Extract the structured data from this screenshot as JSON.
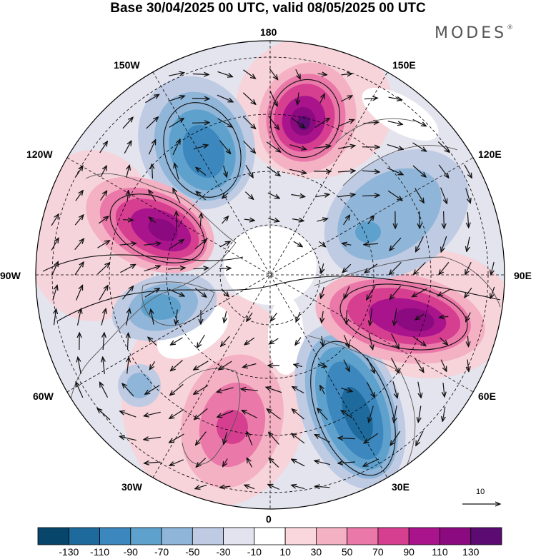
{
  "title": "Base 30/04/2025 00 UTC, valid 08/05/2025 00 UTC",
  "brand": "MODES",
  "brand_mark": "®",
  "longitude_labels": {
    "n180": "180",
    "e150": "150E",
    "e120": "120E",
    "e90": "90E",
    "e60": "60E",
    "e30": "30E",
    "z0": "0",
    "w30": "30W",
    "w60": "60W",
    "w90": "90W",
    "w120": "120W",
    "w150": "150W"
  },
  "reference_vector_label": "10",
  "colorbar": {
    "tick_labels": [
      "-130",
      "-110",
      "-90",
      "-70",
      "-50",
      "-30",
      "-10",
      "10",
      "30",
      "50",
      "70",
      "90",
      "110",
      "130"
    ],
    "colors": [
      "#08456b",
      "#1e6a9c",
      "#3c87bd",
      "#5ea1cc",
      "#8fb5d8",
      "#bfcbe3",
      "#e3e3ef",
      "#ffffff",
      "#f9d7dc",
      "#f4b1c3",
      "#ea78a8",
      "#d63f90",
      "#a9148c",
      "#8c0a80",
      "#5b0b72"
    ]
  },
  "map": {
    "projection": "north polar stereographic",
    "colors": {
      "land_outline": "#555555",
      "wind_arrows": "#111111",
      "gridlines": "#000000"
    },
    "anomaly_centers": [
      {
        "name": "positive-anomaly-east-siberia",
        "sign": "positive",
        "peak": 120
      },
      {
        "name": "positive-anomaly-north-america",
        "sign": "positive",
        "peak": 110
      },
      {
        "name": "positive-anomaly-central-asia",
        "sign": "positive",
        "peak": 110
      },
      {
        "name": "positive-anomaly-north-atlantic",
        "sign": "positive",
        "peak": 70
      },
      {
        "name": "negative-anomaly-north-pacific",
        "sign": "negative",
        "peak": -100
      },
      {
        "name": "negative-anomaly-europe",
        "sign": "negative",
        "peak": -100
      },
      {
        "name": "negative-anomaly-siberia",
        "sign": "negative",
        "peak": -60
      },
      {
        "name": "negative-anomaly-hudson-bay",
        "sign": "negative",
        "peak": -70
      }
    ]
  }
}
